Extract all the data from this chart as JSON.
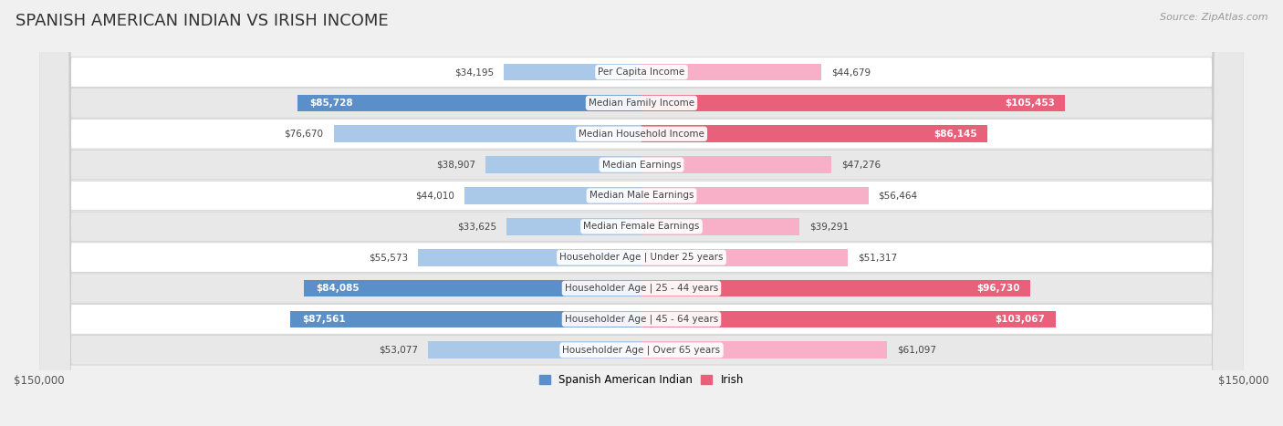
{
  "title": "SPANISH AMERICAN INDIAN VS IRISH INCOME",
  "source": "Source: ZipAtlas.com",
  "categories": [
    "Per Capita Income",
    "Median Family Income",
    "Median Household Income",
    "Median Earnings",
    "Median Male Earnings",
    "Median Female Earnings",
    "Householder Age | Under 25 years",
    "Householder Age | 25 - 44 years",
    "Householder Age | 45 - 64 years",
    "Householder Age | Over 65 years"
  ],
  "left_values": [
    34195,
    85728,
    76670,
    38907,
    44010,
    33625,
    55573,
    84085,
    87561,
    53077
  ],
  "right_values": [
    44679,
    105453,
    86145,
    47276,
    56464,
    39291,
    51317,
    96730,
    103067,
    61097
  ],
  "left_labels": [
    "$34,195",
    "$85,728",
    "$76,670",
    "$38,907",
    "$44,010",
    "$33,625",
    "$55,573",
    "$84,085",
    "$87,561",
    "$53,077"
  ],
  "right_labels": [
    "$44,679",
    "$105,453",
    "$86,145",
    "$47,276",
    "$56,464",
    "$39,291",
    "$51,317",
    "$96,730",
    "$103,067",
    "$61,097"
  ],
  "max_value": 150000,
  "left_color_light": "#aac8e8",
  "left_color_dark": "#5b8fc9",
  "right_color_light": "#f8b0c8",
  "right_color_dark": "#e8607a",
  "right_color_mid": "#f070a0",
  "left_legend": "Spanish American Indian",
  "right_legend": "Irish",
  "bg_color": "#f0f0f0",
  "row_bg_even": "#ffffff",
  "row_bg_odd": "#e8e8e8",
  "title_fontsize": 13,
  "label_fontsize": 8,
  "source_fontsize": 8,
  "legend_fontsize": 8.5,
  "inside_label_threshold": 80000
}
